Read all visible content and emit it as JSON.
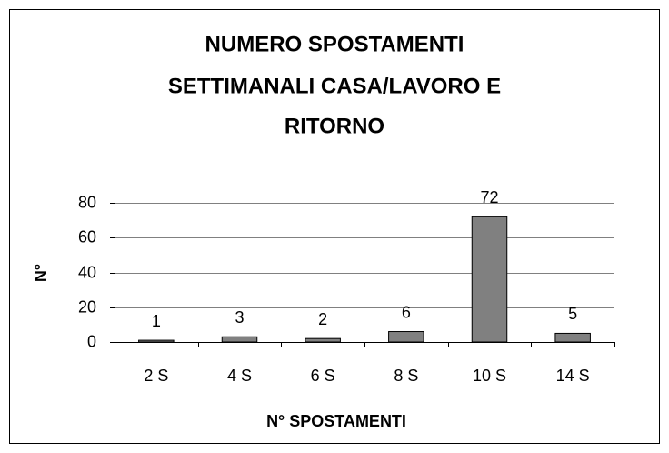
{
  "chart_data": {
    "type": "bar",
    "title": [
      "NUMERO SPOSTAMENTI",
      "SETTIMANALI CASA/LAVORO E",
      "RITORNO"
    ],
    "x_label": "N° SPOSTAMENTI",
    "y_label": "N°",
    "categories": [
      "2 S",
      "4 S",
      "6 S",
      "8 S",
      "10 S",
      "14 S"
    ],
    "values": [
      1,
      3,
      2,
      6,
      72,
      5
    ],
    "color": "#808080",
    "ylim": [
      0,
      80
    ],
    "yticks": [
      0,
      20,
      40,
      60,
      80
    ],
    "grid": true
  }
}
